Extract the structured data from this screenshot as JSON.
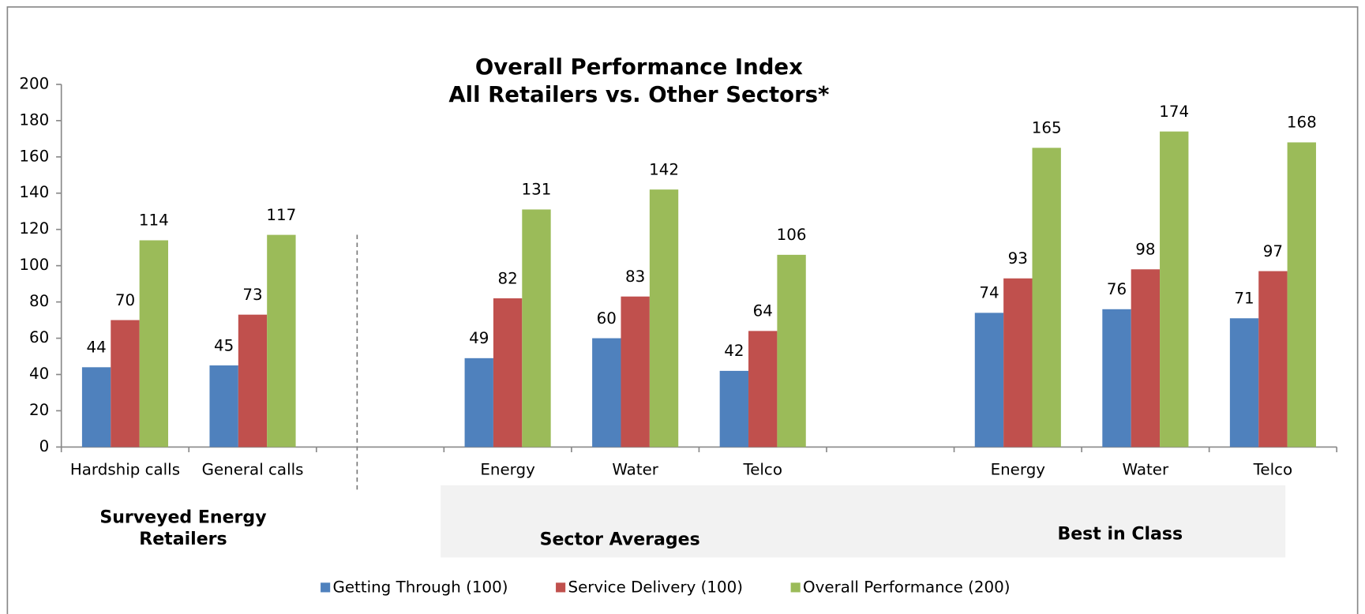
{
  "chart_data": {
    "type": "bar",
    "title": "Overall Performance Index",
    "subtitle": "All Retailers vs. Other Sectors*",
    "categories": [
      "Hardship calls",
      "General calls",
      null,
      "Energy",
      "Water",
      "Telco",
      null,
      "Energy",
      "Water",
      "Telco"
    ],
    "series": [
      {
        "name": "Getting Through (100)",
        "color": "#4f81bd",
        "values": [
          44,
          45,
          null,
          49,
          60,
          42,
          null,
          74,
          76,
          71
        ]
      },
      {
        "name": "Service Delivery (100)",
        "color": "#c0504d",
        "values": [
          70,
          73,
          null,
          82,
          83,
          64,
          null,
          93,
          98,
          97
        ]
      },
      {
        "name": "Overall Performance (200)",
        "color": "#9bbb59",
        "values": [
          114,
          117,
          null,
          131,
          142,
          106,
          null,
          165,
          174,
          168
        ]
      }
    ],
    "ylim": [
      0,
      200
    ],
    "yticks": [
      0,
      20,
      40,
      60,
      80,
      100,
      120,
      140,
      160,
      180,
      200
    ],
    "annotations": [
      "Surveyed Energy Retailers",
      "Sector Averages",
      "Best in Class"
    ],
    "legend": "bottom"
  }
}
